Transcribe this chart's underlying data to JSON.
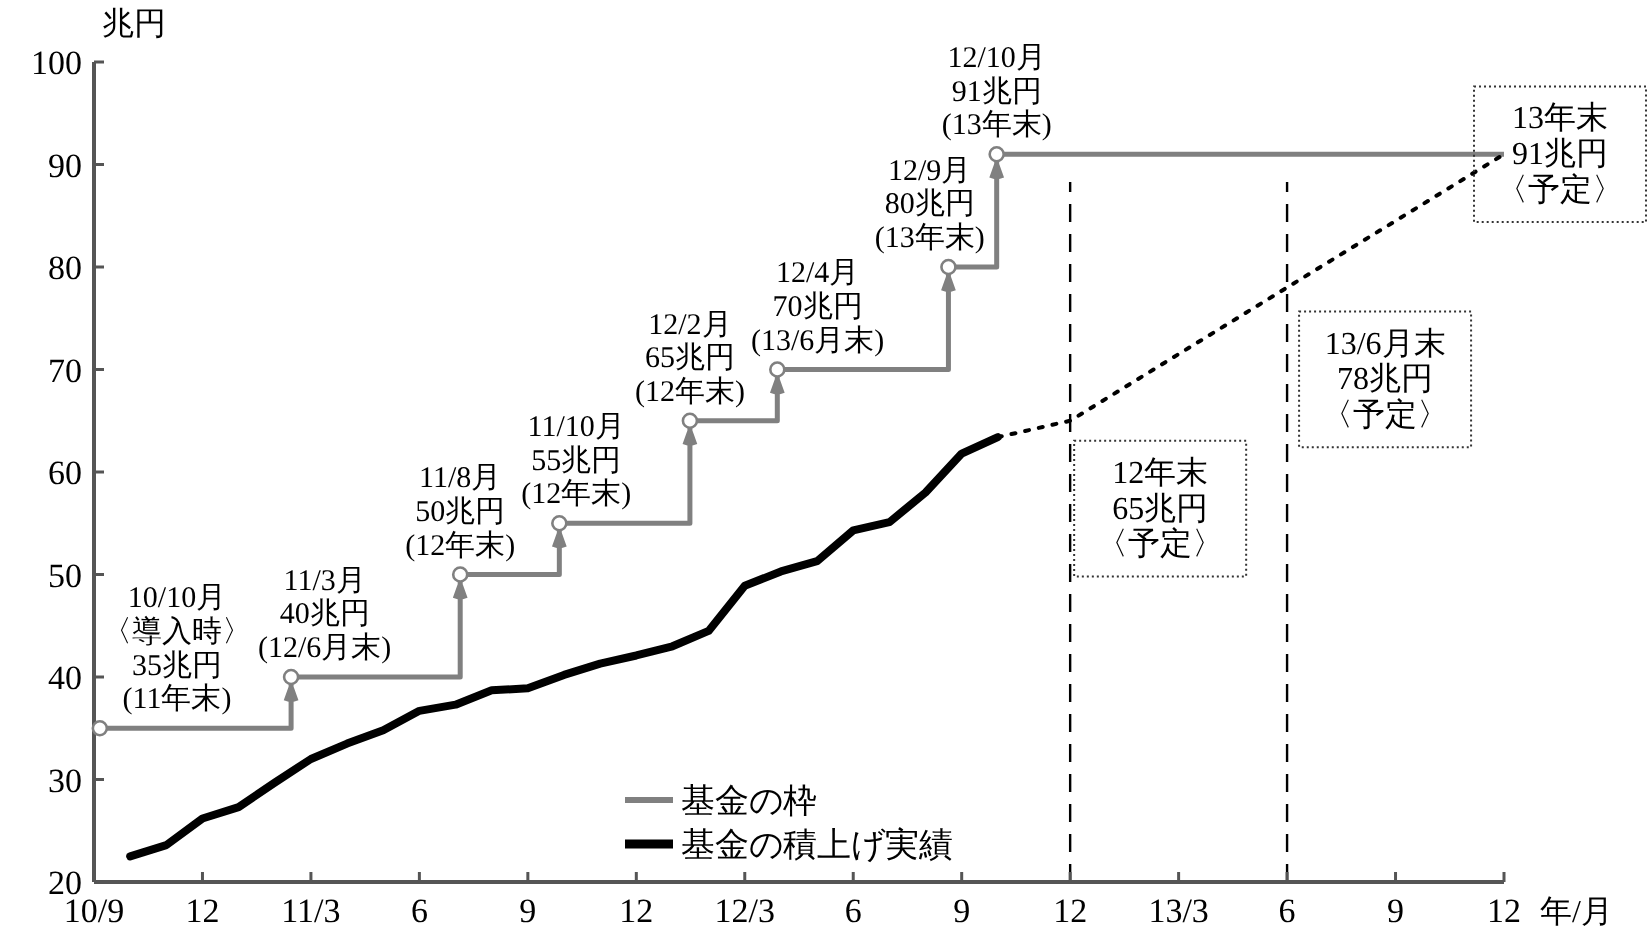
{
  "chart_data": {
    "type": "line",
    "ylabel": "兆円",
    "xlabel": "年/月",
    "xlim": [
      "2010-09-30",
      "2013-12-31"
    ],
    "xticks": [
      {
        "value": "2010-09-30",
        "label": "10/9"
      },
      {
        "value": "2010-12-31",
        "label": "12"
      },
      {
        "value": "2011-03-31",
        "label": "11/3"
      },
      {
        "value": "2011-06-30",
        "label": "6"
      },
      {
        "value": "2011-09-30",
        "label": "9"
      },
      {
        "value": "2011-12-31",
        "label": "12"
      },
      {
        "value": "2012-03-31",
        "label": "12/3"
      },
      {
        "value": "2012-06-30",
        "label": "6"
      },
      {
        "value": "2012-09-30",
        "label": "9"
      },
      {
        "value": "2012-12-31",
        "label": "12"
      },
      {
        "value": "2013-03-31",
        "label": "13/3"
      },
      {
        "value": "2013-06-30",
        "label": "6"
      },
      {
        "value": "2013-09-30",
        "label": "9"
      },
      {
        "value": "2013-12-31",
        "label": "12"
      }
    ],
    "ylim": [
      20,
      100
    ],
    "yticks": [
      20,
      30,
      40,
      50,
      60,
      70,
      80,
      90,
      100
    ],
    "grid": false,
    "legend": "bottom",
    "series": [
      {
        "name": "基金の枠",
        "type": "step",
        "color": "#808080",
        "marker": "circle",
        "x": [
          "2010-10-05",
          "2011-03-14",
          "2011-08-04",
          "2011-10-27",
          "2012-02-14",
          "2012-04-27",
          "2012-09-19",
          "2012-10-30",
          "2013-12-31"
        ],
        "values": [
          35,
          40,
          50,
          55,
          65,
          70,
          80,
          91,
          91
        ]
      },
      {
        "name": "基金の積上げ実績",
        "type": "line",
        "color": "#000000",
        "x": [
          "2010-10-31",
          "2010-11-30",
          "2010-12-31",
          "2011-01-31",
          "2011-02-28",
          "2011-03-31",
          "2011-04-30",
          "2011-05-31",
          "2011-06-30",
          "2011-07-31",
          "2011-08-31",
          "2011-09-30",
          "2011-10-31",
          "2011-11-30",
          "2011-12-31",
          "2012-01-31",
          "2012-02-29",
          "2012-03-31",
          "2012-04-30",
          "2012-05-31",
          "2012-06-30",
          "2012-07-31",
          "2012-08-31",
          "2012-09-30",
          "2012-10-31"
        ],
        "values": [
          22.5,
          23.6,
          26.2,
          27.3,
          29.7,
          32.0,
          33.5,
          34.8,
          36.7,
          37.3,
          38.7,
          38.9,
          40.2,
          41.3,
          42.1,
          43.0,
          44.5,
          48.9,
          50.3,
          51.3,
          54.3,
          55.1,
          58.0,
          61.8,
          63.4
        ]
      },
      {
        "type": "line",
        "color": "#000000",
        "line_style": "dotted",
        "x": [
          "2012-10-31",
          "2012-12-31",
          "2013-06-30",
          "2013-12-31"
        ],
        "values": [
          63.4,
          65,
          78,
          91
        ]
      }
    ],
    "ref_lines": [
      {
        "axis": "x",
        "value": "2012-12-31",
        "color": "#000000",
        "line_style": "dashed"
      },
      {
        "axis": "x",
        "value": "2013-06-30",
        "color": "#000000",
        "line_style": "dashed"
      }
    ],
    "annotations": [
      {
        "text": "10/10月〈導入時〉35兆円(11年末)",
        "x": "2010-10-05",
        "y": 35
      },
      {
        "text": "11/3月40兆円(12/6月末)",
        "x": "2011-03-14",
        "y": 40
      },
      {
        "text": "11/8月50兆円(12年末)",
        "x": "2011-08-04",
        "y": 50
      },
      {
        "text": "11/10月55兆円(12年末)",
        "x": "2011-10-27",
        "y": 55
      },
      {
        "text": "12/2月65兆円(12年末)",
        "x": "2012-02-14",
        "y": 65
      },
      {
        "text": "12/4月70兆円(13/6月末)",
        "x": "2012-04-27",
        "y": 70
      },
      {
        "text": "12/9月80兆円(13年末)",
        "x": "2012-09-19",
        "y": 80
      },
      {
        "text": "12/10月91兆円(13年末)",
        "x": "2012-10-30",
        "y": 91
      },
      {
        "text": "12年末65兆円〈予定〉",
        "x": "2012-12-31",
        "y": 65
      },
      {
        "text": "13/6月末78兆円〈予定〉",
        "x": "2013-06-30",
        "y": 78
      },
      {
        "text": "13年末91兆円〈予定〉",
        "x": "2013-12-31",
        "y": 91
      }
    ]
  }
}
